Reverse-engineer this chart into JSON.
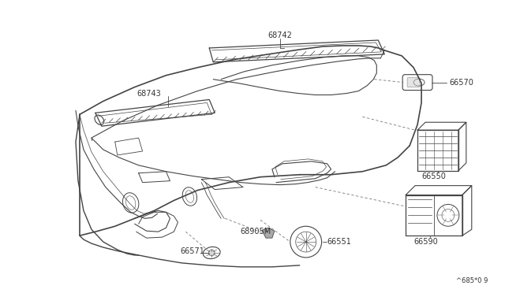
{
  "background_color": "#ffffff",
  "figure_width": 6.4,
  "figure_height": 3.72,
  "dpi": 100,
  "watermark": "^685*0 9",
  "line_color": "#444444",
  "text_color": "#333333",
  "font_size": 7.0
}
